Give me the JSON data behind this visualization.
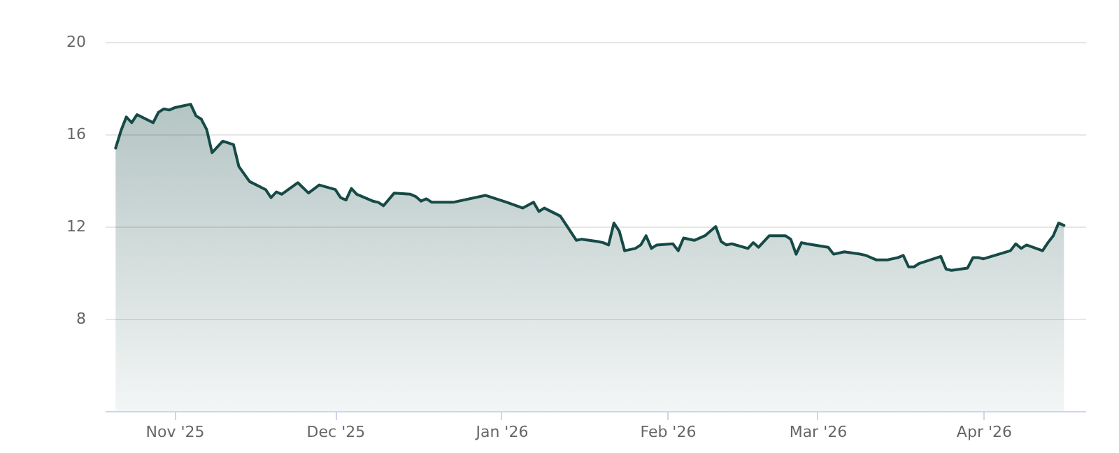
{
  "chart_data": {
    "type": "area",
    "x": [
      "2025-10-21",
      "2025-10-22",
      "2025-10-23",
      "2025-10-24",
      "2025-10-25",
      "2025-10-28",
      "2025-10-29",
      "2025-10-30",
      "2025-10-31",
      "2025-11-01",
      "2025-11-04",
      "2025-11-05",
      "2025-11-06",
      "2025-11-07",
      "2025-11-08",
      "2025-11-10",
      "2025-11-12",
      "2025-11-13",
      "2025-11-15",
      "2025-11-18",
      "2025-11-19",
      "2025-11-20",
      "2025-11-21",
      "2025-11-24",
      "2025-11-26",
      "2025-11-28",
      "2025-12-01",
      "2025-12-02",
      "2025-12-03",
      "2025-12-04",
      "2025-12-05",
      "2025-12-08",
      "2025-12-09",
      "2025-12-10",
      "2025-12-12",
      "2025-12-15",
      "2025-12-16",
      "2025-12-17",
      "2025-12-18",
      "2025-12-19",
      "2025-12-23",
      "2025-12-29",
      "2026-01-02",
      "2026-01-05",
      "2026-01-07",
      "2026-01-08",
      "2026-01-09",
      "2026-01-12",
      "2026-01-13",
      "2026-01-15",
      "2026-01-16",
      "2026-01-19",
      "2026-01-20",
      "2026-01-21",
      "2026-01-22",
      "2026-01-23",
      "2026-01-24",
      "2026-01-26",
      "2026-01-27",
      "2026-01-28",
      "2026-01-29",
      "2026-01-30",
      "2026-02-02",
      "2026-02-03",
      "2026-02-04",
      "2026-02-06",
      "2026-02-08",
      "2026-02-10",
      "2026-02-11",
      "2026-02-12",
      "2026-02-13",
      "2026-02-16",
      "2026-02-17",
      "2026-02-18",
      "2026-02-20",
      "2026-02-23",
      "2026-02-24",
      "2026-02-25",
      "2026-02-26",
      "2026-02-27",
      "2026-03-03",
      "2026-03-04",
      "2026-03-06",
      "2026-03-09",
      "2026-03-10",
      "2026-03-12",
      "2026-03-14",
      "2026-03-16",
      "2026-03-17",
      "2026-03-18",
      "2026-03-19",
      "2026-03-20",
      "2026-03-22",
      "2026-03-24",
      "2026-03-25",
      "2026-03-26",
      "2026-03-29",
      "2026-03-30",
      "2026-03-31",
      "2026-04-01",
      "2026-04-06",
      "2026-04-07",
      "2026-04-08",
      "2026-04-09",
      "2026-04-12",
      "2026-04-13",
      "2026-04-14",
      "2026-04-15",
      "2026-04-16"
    ],
    "series": [
      {
        "color": "#164a46",
        "values": [
          15.4,
          16.15,
          16.75,
          16.5,
          16.85,
          16.5,
          16.95,
          17.1,
          17.05,
          17.15,
          17.3,
          16.8,
          16.65,
          16.2,
          15.2,
          15.7,
          15.55,
          14.6,
          13.95,
          13.6,
          13.25,
          13.5,
          13.4,
          13.9,
          13.45,
          13.8,
          13.6,
          13.25,
          13.15,
          13.65,
          13.4,
          13.1,
          13.05,
          12.9,
          13.45,
          13.4,
          13.3,
          13.1,
          13.2,
          13.05,
          13.05,
          13.35,
          13.05,
          12.8,
          13.05,
          12.65,
          12.8,
          12.45,
          12.1,
          11.4,
          11.45,
          11.35,
          11.3,
          11.2,
          12.15,
          11.8,
          10.95,
          11.05,
          11.2,
          11.6,
          11.05,
          11.2,
          11.25,
          10.95,
          11.5,
          11.4,
          11.6,
          12.0,
          11.35,
          11.2,
          11.25,
          11.05,
          11.3,
          11.1,
          11.6,
          11.6,
          11.45,
          10.8,
          11.3,
          11.25,
          11.1,
          10.8,
          10.9,
          10.8,
          10.75,
          10.55,
          10.55,
          10.65,
          10.75,
          10.25,
          10.25,
          10.4,
          10.55,
          10.7,
          10.15,
          10.1,
          10.2,
          10.65,
          10.65,
          10.6,
          10.95,
          11.25,
          11.05,
          11.2,
          10.95,
          11.3,
          11.6,
          12.15,
          12.05
        ]
      }
    ],
    "xlim": [
      "2025-10-19",
      "2026-04-20"
    ],
    "xticks": [
      {
        "value": "2025-11-01",
        "label": "Nov '25"
      },
      {
        "value": "2025-12-01",
        "label": "Dec '25"
      },
      {
        "value": "2026-01-01",
        "label": "Jan '26"
      },
      {
        "value": "2026-02-01",
        "label": "Feb '26"
      },
      {
        "value": "2026-03-01",
        "label": "Mar '26"
      },
      {
        "value": "2026-04-01",
        "label": "Apr '26"
      }
    ],
    "ylim": [
      4,
      20
    ],
    "yticks": [
      8,
      12,
      16,
      20
    ],
    "grid": "y"
  }
}
